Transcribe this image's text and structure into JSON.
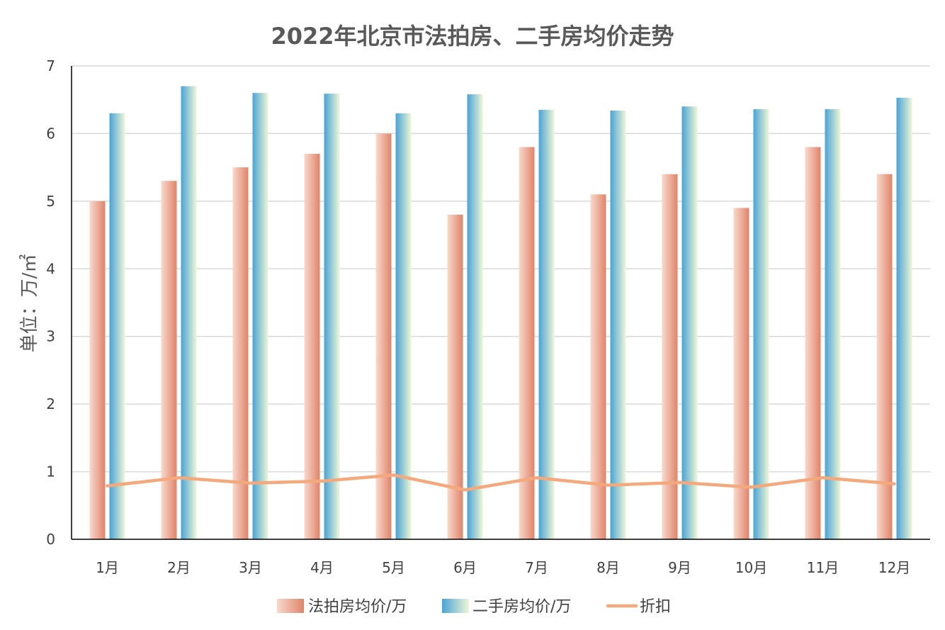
{
  "chart_data": {
    "type": "bar",
    "title": "2022年北京市法拍房、二手房均价走势",
    "ylabel": "单位：万/㎡",
    "xlabel": "",
    "ylim": [
      0,
      7
    ],
    "yticks": [
      "0",
      "1",
      "2",
      "3",
      "4",
      "5",
      "6",
      "7"
    ],
    "grid": true,
    "legend_position": "bottom",
    "categories": [
      "1月",
      "2月",
      "3月",
      "4月",
      "5月",
      "6月",
      "7月",
      "8月",
      "9月",
      "10月",
      "11月",
      "12月"
    ],
    "series": [
      {
        "name": "法拍房均价/万",
        "kind": "bar",
        "values": [
          5.0,
          5.3,
          5.5,
          5.7,
          6.0,
          4.8,
          5.8,
          5.1,
          5.4,
          4.9,
          5.8,
          5.4
        ]
      },
      {
        "name": "二手房均价/万",
        "kind": "bar",
        "values": [
          6.3,
          6.7,
          6.6,
          6.59,
          6.3,
          6.58,
          6.35,
          6.34,
          6.4,
          6.36,
          6.36,
          6.53
        ]
      },
      {
        "name": "折扣",
        "kind": "line",
        "values": [
          0.79,
          0.91,
          0.83,
          0.86,
          0.95,
          0.73,
          0.91,
          0.8,
          0.84,
          0.77,
          0.91,
          0.82
        ]
      }
    ]
  },
  "colors": {
    "bar1_light": "#f8d9cc",
    "bar1_dark": "#e0846a",
    "bar2_light": "#eef7d6",
    "bar2_dark": "#4aa3d6",
    "line": "#f4a97d",
    "grid": "#d9d9d9",
    "axis": "#000000"
  }
}
